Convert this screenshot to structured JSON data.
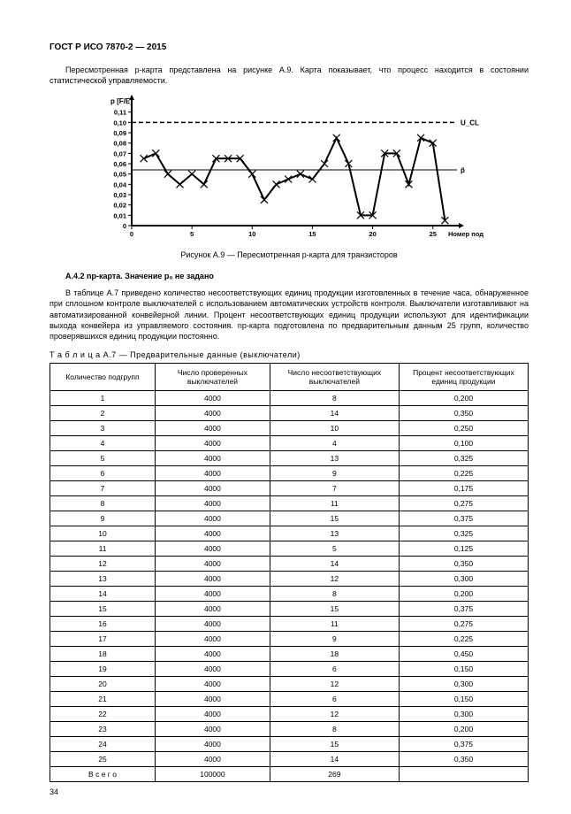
{
  "doc_code": "ГОСТ Р ИСО 7870-2 — 2015",
  "intro_text": "Пересмотренная p-карта представлена на рисунке А.9. Карта показывает, что процесс находится в состоянии статистической управляемости.",
  "chart": {
    "type": "line",
    "y_axis_label": "p [F/E]",
    "x_axis_label": "Номер подгруппы",
    "ucl_label": "U_CL",
    "mean_label": "p̄",
    "xlim": [
      0,
      27
    ],
    "ylim": [
      0,
      0.12
    ],
    "yticks": [
      0,
      0.01,
      0.02,
      0.03,
      0.04,
      0.05,
      0.06,
      0.07,
      0.08,
      0.09,
      0.1,
      0.11
    ],
    "ytick_labels": [
      "0",
      "0,01",
      "0,02",
      "0,03",
      "0,04",
      "0,05",
      "0,06",
      "0,07",
      "0,08",
      "0,09",
      "0,10",
      "0,11"
    ],
    "xticks": [
      0,
      5,
      10,
      15,
      20,
      25
    ],
    "xtick_labels": [
      "0",
      "5",
      "10",
      "15",
      "20",
      "25"
    ],
    "ucl_value": 0.1,
    "mean_value": 0.054,
    "series_x": [
      1,
      2,
      3,
      4,
      5,
      6,
      7,
      8,
      9,
      10,
      11,
      12,
      13,
      14,
      15,
      16,
      17,
      18,
      19,
      20,
      21,
      22,
      23,
      24,
      25,
      26
    ],
    "series_y": [
      0.065,
      0.07,
      0.05,
      0.04,
      0.05,
      0.04,
      0.065,
      0.065,
      0.065,
      0.05,
      0.025,
      0.04,
      0.045,
      0.05,
      0.045,
      0.06,
      0.085,
      0.06,
      0.01,
      0.01,
      0.07,
      0.07,
      0.04,
      0.085,
      0.08,
      0.005
    ],
    "line_color": "#000000",
    "marker": "x",
    "marker_size": 4,
    "line_width": 2,
    "ucl_dash": "5,3",
    "mean_line_width": 1,
    "background_color": "#ffffff",
    "axis_color": "#000000",
    "tick_length": 4
  },
  "fig_caption": "Рисунок А.9 — Пересмотренная p-карта для транзисторов",
  "section_heading": "А.4.2  np-карта. Значение p₀ не задано",
  "para2": "В таблице А.7 приведено количество несоответствующих единиц продукции изготовленных в течение часа, обнаруженное при сплошном контроле выключателей с использованием автоматических устройств контроля. Выключатели изготавливают на автоматизированной конвейерной линии. Процент несоответствующих единиц продукции используют для идентификации выхода конвейера из управляемого состояния. np-карта подготовлена по предварительным данным 25 групп, количество проверявшихся единиц продукции постоянно.",
  "table_caption": "Т а б л и ц а   А.7  —  Предварительные данные (выключатели)",
  "table": {
    "columns": [
      "Количество подгрупп",
      "Число проверенных выключателей",
      "Число несоответствующих выключателей",
      "Процент несоответствующих единиц продукции"
    ],
    "col_widths": [
      "22%",
      "24%",
      "27%",
      "27%"
    ],
    "rows": [
      [
        "1",
        "4000",
        "8",
        "0,200"
      ],
      [
        "2",
        "4000",
        "14",
        "0,350"
      ],
      [
        "3",
        "4000",
        "10",
        "0,250"
      ],
      [
        "4",
        "4000",
        "4",
        "0,100"
      ],
      [
        "5",
        "4000",
        "13",
        "0,325"
      ],
      [
        "6",
        "4000",
        "9",
        "0,225"
      ],
      [
        "7",
        "4000",
        "7",
        "0,175"
      ],
      [
        "8",
        "4000",
        "11",
        "0,275"
      ],
      [
        "9",
        "4000",
        "15",
        "0,375"
      ],
      [
        "10",
        "4000",
        "13",
        "0,325"
      ],
      [
        "11",
        "4000",
        "5",
        "0,125"
      ],
      [
        "12",
        "4000",
        "14",
        "0,350"
      ],
      [
        "13",
        "4000",
        "12",
        "0,300"
      ],
      [
        "14",
        "4000",
        "8",
        "0,200"
      ],
      [
        "15",
        "4000",
        "15",
        "0,375"
      ],
      [
        "16",
        "4000",
        "11",
        "0,275"
      ],
      [
        "17",
        "4000",
        "9",
        "0,225"
      ],
      [
        "18",
        "4000",
        "18",
        "0,450"
      ],
      [
        "19",
        "4000",
        "6",
        "0,150"
      ],
      [
        "20",
        "4000",
        "12",
        "0,300"
      ],
      [
        "21",
        "4000",
        "6",
        "0,150"
      ],
      [
        "22",
        "4000",
        "12",
        "0,300"
      ],
      [
        "23",
        "4000",
        "8",
        "0,200"
      ],
      [
        "24",
        "4000",
        "15",
        "0,375"
      ],
      [
        "25",
        "4000",
        "14",
        "0,350"
      ],
      [
        "В с е г о",
        "100000",
        "269",
        ""
      ]
    ]
  },
  "page_number": "34"
}
